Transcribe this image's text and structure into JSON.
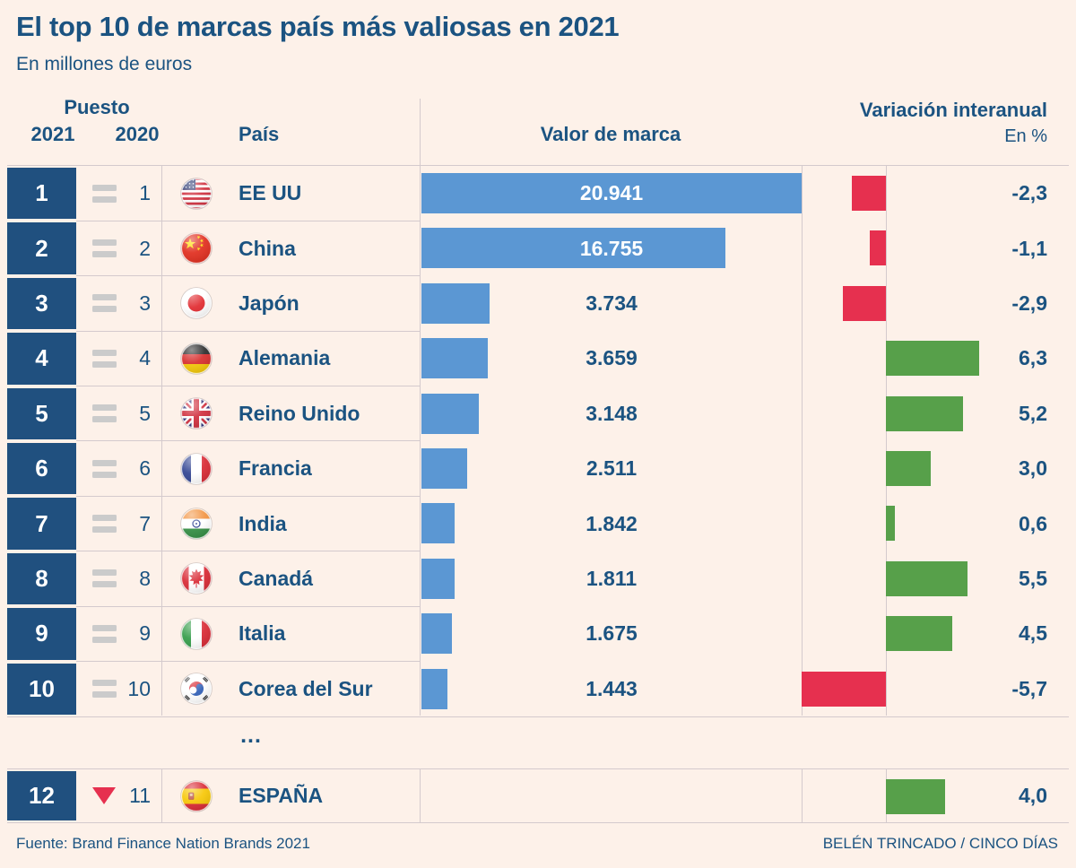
{
  "title": "El top 10 de marcas país más valiosas en 2021",
  "subtitle": "En millones de euros",
  "header": {
    "puesto": "Puesto",
    "y2021": "2021",
    "y2020": "2020",
    "pais": "País",
    "valor": "Valor de marca",
    "variacion": "Variación interanual",
    "en_pct": "En %"
  },
  "ellipsis": "...",
  "footer": {
    "source": "Fuente: Brand Finance Nation Brands 2021",
    "credit": "BELÉN TRINCADO / CINCO DÍAS"
  },
  "colors": {
    "bg": "#fdf1e9",
    "navy": "#1b5381",
    "box": "#20507f",
    "blue": "#5b97d3",
    "red": "#e6304f",
    "green": "#57a04a",
    "line": "#d4cacd",
    "gray": "#cbcbcb"
  },
  "icons": {
    "same_trend": "equals-icon",
    "down_trend": "triangle-down-icon",
    "flags": [
      "us-flag-icon",
      "cn-flag-icon",
      "jp-flag-icon",
      "de-flag-icon",
      "gb-flag-icon",
      "fr-flag-icon",
      "in-flag-icon",
      "ca-flag-icon",
      "it-flag-icon",
      "kr-flag-icon",
      "es-flag-icon"
    ]
  },
  "chart_data": {
    "type": "bar",
    "title": "El top 10 de marcas país más valiosas en 2021",
    "unit": "millones de euros",
    "value_column_label": "Valor de marca",
    "change_column_label": "Variación interanual En %",
    "value_axis_max": 20941,
    "rows": [
      {
        "rank_2021": "1",
        "rank_2020": "1",
        "trend": "same",
        "country": "EE UU",
        "flag": "us",
        "value": 20941,
        "value_label": "20.941",
        "change_pct": -2.3,
        "change_label": "-2,3"
      },
      {
        "rank_2021": "2",
        "rank_2020": "2",
        "trend": "same",
        "country": "China",
        "flag": "cn",
        "value": 16755,
        "value_label": "16.755",
        "change_pct": -1.1,
        "change_label": "-1,1"
      },
      {
        "rank_2021": "3",
        "rank_2020": "3",
        "trend": "same",
        "country": "Japón",
        "flag": "jp",
        "value": 3734,
        "value_label": "3.734",
        "change_pct": -2.9,
        "change_label": "-2,9"
      },
      {
        "rank_2021": "4",
        "rank_2020": "4",
        "trend": "same",
        "country": "Alemania",
        "flag": "de",
        "value": 3659,
        "value_label": "3.659",
        "change_pct": 6.3,
        "change_label": "6,3"
      },
      {
        "rank_2021": "5",
        "rank_2020": "5",
        "trend": "same",
        "country": "Reino Unido",
        "flag": "gb",
        "value": 3148,
        "value_label": "3.148",
        "change_pct": 5.2,
        "change_label": "5,2"
      },
      {
        "rank_2021": "6",
        "rank_2020": "6",
        "trend": "same",
        "country": "Francia",
        "flag": "fr",
        "value": 2511,
        "value_label": "2.511",
        "change_pct": 3.0,
        "change_label": "3,0"
      },
      {
        "rank_2021": "7",
        "rank_2020": "7",
        "trend": "same",
        "country": "India",
        "flag": "in",
        "value": 1842,
        "value_label": "1.842",
        "change_pct": 0.6,
        "change_label": "0,6"
      },
      {
        "rank_2021": "8",
        "rank_2020": "8",
        "trend": "same",
        "country": "Canadá",
        "flag": "ca",
        "value": 1811,
        "value_label": "1.811",
        "change_pct": 5.5,
        "change_label": "5,5"
      },
      {
        "rank_2021": "9",
        "rank_2020": "9",
        "trend": "same",
        "country": "Italia",
        "flag": "it",
        "value": 1675,
        "value_label": "1.675",
        "change_pct": 4.5,
        "change_label": "4,5"
      },
      {
        "rank_2021": "10",
        "rank_2020": "10",
        "trend": "same",
        "country": "Corea del Sur",
        "flag": "kr",
        "value": 1443,
        "value_label": "1.443",
        "change_pct": -5.7,
        "change_label": "-5,7"
      }
    ],
    "skipped_rows_marker": "...",
    "extra_row": {
      "rank_2021": "12",
      "rank_2020": "11",
      "trend": "down",
      "country": "ESPAÑA",
      "flag": "es",
      "value": null,
      "value_label": "",
      "change_pct": 4.0,
      "change_label": "4,0"
    }
  }
}
